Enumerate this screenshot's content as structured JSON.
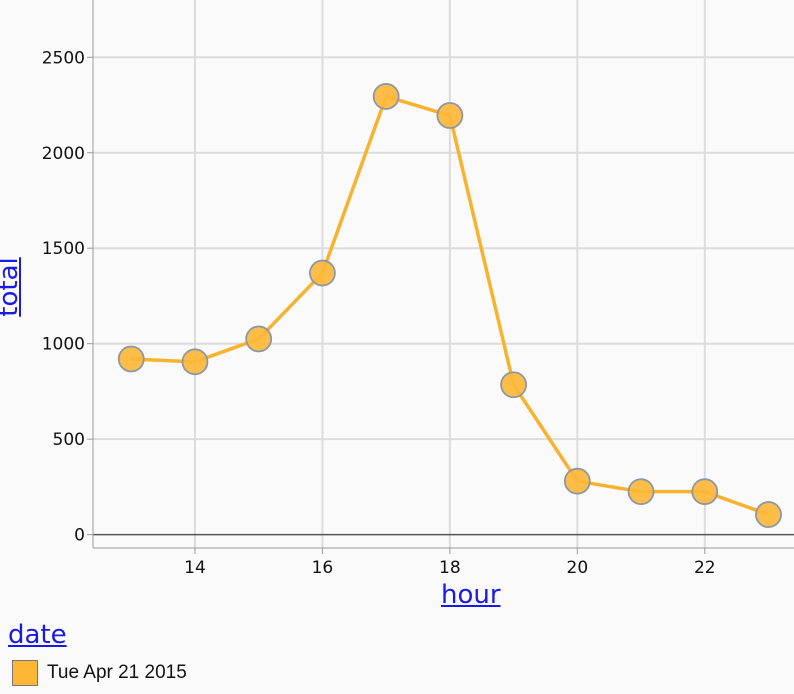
{
  "chart_data": {
    "type": "line",
    "xlabel": "hour",
    "ylabel": "total",
    "x": [
      13,
      14,
      15,
      16,
      17,
      18,
      19,
      20,
      21,
      22,
      23
    ],
    "series": [
      {
        "name": "Tue Apr 21 2015",
        "values": [
          920,
          905,
          1025,
          1370,
          2295,
          2195,
          785,
          280,
          225,
          225,
          105
        ],
        "color": "#fdb735"
      }
    ],
    "x_ticks": [
      14,
      16,
      18,
      20,
      22
    ],
    "y_ticks": [
      0,
      500,
      1000,
      1500,
      2000,
      2500
    ],
    "x_range": [
      12.4,
      23.4
    ],
    "y_range": [
      -70,
      2800
    ],
    "grid": true
  },
  "legend": {
    "title": "date",
    "items": [
      {
        "label": "Tue Apr 21 2015",
        "color": "#fdb735"
      }
    ]
  },
  "colors": {
    "line": "#f8b22e",
    "marker_fill": "#fdb735",
    "marker_stroke": "#8d97a6",
    "grid": "#dcdcdc",
    "axis_title": "#1a1ae6"
  }
}
